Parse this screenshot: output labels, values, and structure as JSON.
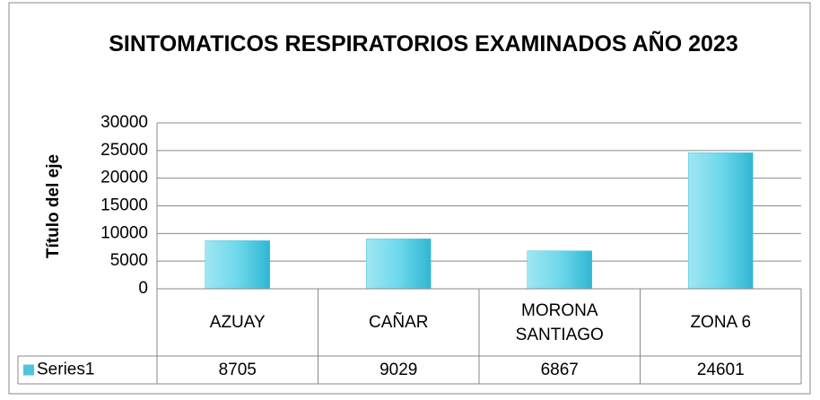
{
  "chart_data": {
    "type": "bar",
    "title": "SINTOMATICOS RESPIRATORIOS EXAMINADOS AÑO 2023",
    "y_label": "Título del eje",
    "categories": [
      "AZUAY",
      "CAÑAR",
      "MORONA SANTIAGO",
      "ZONA 6"
    ],
    "series": [
      {
        "name": "Series1",
        "color": "#4cc6e0",
        "values": [
          8705,
          9029,
          6867,
          24601
        ]
      }
    ],
    "ylim": [
      0,
      30000
    ],
    "yticks": [
      0,
      5000,
      10000,
      15000,
      20000,
      25000,
      30000
    ],
    "grid": true,
    "data_table": true
  }
}
